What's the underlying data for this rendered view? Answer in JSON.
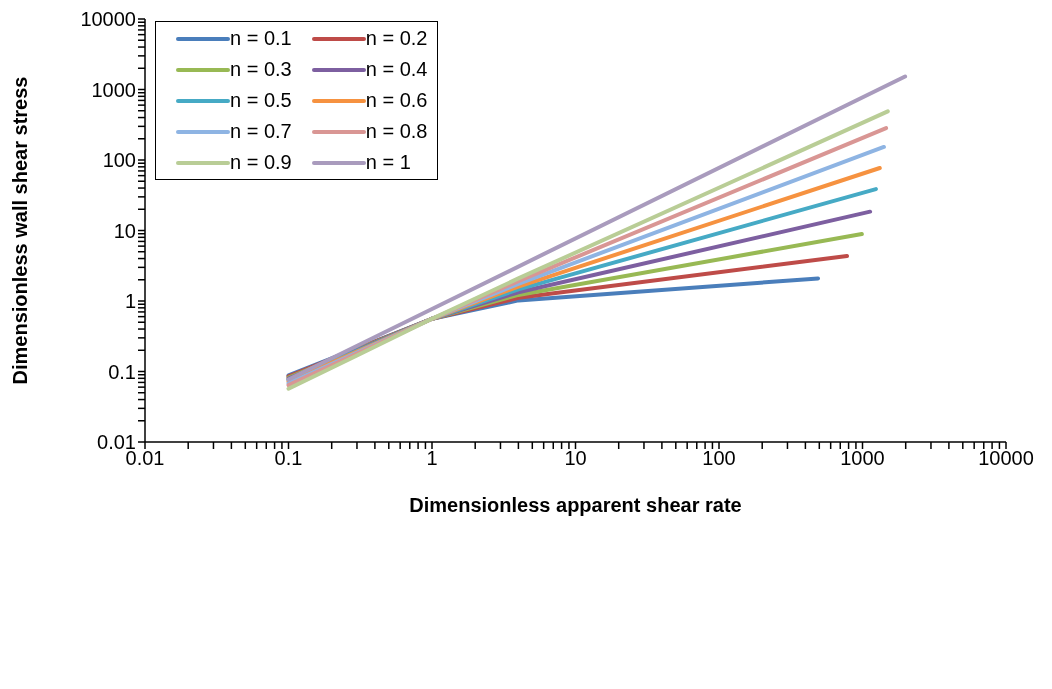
{
  "chart_data": {
    "type": "line",
    "xlabel": "Dimensionless apparent shear rate",
    "ylabel": "Dimensionless wall shear stress",
    "log": "xy",
    "grid": false,
    "legend": "top left",
    "line_style": "solid",
    "marker": "none",
    "xlim": [
      0.01,
      10000
    ],
    "ylim": [
      0.01,
      10000
    ],
    "xticks": [
      0.01,
      {
        "value": 0.02,
        "label": null
      },
      {
        "value": 0.03,
        "label": null
      },
      {
        "value": 0.04,
        "label": null
      },
      {
        "value": 0.05,
        "label": null
      },
      {
        "value": 0.06,
        "label": null
      },
      {
        "value": 0.07,
        "label": null
      },
      {
        "value": 0.08,
        "label": null
      },
      {
        "value": 0.09,
        "label": null
      },
      0.1,
      {
        "value": 0.2,
        "label": null
      },
      {
        "value": 0.3,
        "label": null
      },
      {
        "value": 0.4,
        "label": null
      },
      {
        "value": 0.5,
        "label": null
      },
      {
        "value": 0.6,
        "label": null
      },
      {
        "value": 0.7,
        "label": null
      },
      {
        "value": 0.8,
        "label": null
      },
      {
        "value": 0.9,
        "label": null
      },
      1,
      {
        "value": 2,
        "label": null
      },
      {
        "value": 3,
        "label": null
      },
      {
        "value": 4,
        "label": null
      },
      {
        "value": 5,
        "label": null
      },
      {
        "value": 6,
        "label": null
      },
      {
        "value": 7,
        "label": null
      },
      {
        "value": 8,
        "label": null
      },
      {
        "value": 9,
        "label": null
      },
      10,
      {
        "value": 20,
        "label": null
      },
      {
        "value": 30,
        "label": null
      },
      {
        "value": 40,
        "label": null
      },
      {
        "value": 50,
        "label": null
      },
      {
        "value": 60,
        "label": null
      },
      {
        "value": 70,
        "label": null
      },
      {
        "value": 80,
        "label": null
      },
      {
        "value": 90,
        "label": null
      },
      100,
      {
        "value": 200,
        "label": null
      },
      {
        "value": 300,
        "label": null
      },
      {
        "value": 400,
        "label": null
      },
      {
        "value": 500,
        "label": null
      },
      {
        "value": 600,
        "label": null
      },
      {
        "value": 700,
        "label": null
      },
      {
        "value": 800,
        "label": null
      },
      {
        "value": 900,
        "label": null
      },
      1000,
      {
        "value": 2000,
        "label": null
      },
      {
        "value": 3000,
        "label": null
      },
      {
        "value": 4000,
        "label": null
      },
      {
        "value": 5000,
        "label": null
      },
      {
        "value": 6000,
        "label": null
      },
      {
        "value": 7000,
        "label": null
      },
      {
        "value": 8000,
        "label": null
      },
      {
        "value": 9000,
        "label": null
      },
      10000
    ],
    "yticks": [
      0.01,
      {
        "value": 0.02,
        "label": null
      },
      {
        "value": 0.03,
        "label": null
      },
      {
        "value": 0.04,
        "label": null
      },
      {
        "value": 0.05,
        "label": null
      },
      {
        "value": 0.06,
        "label": null
      },
      {
        "value": 0.07,
        "label": null
      },
      {
        "value": 0.08,
        "label": null
      },
      {
        "value": 0.09,
        "label": null
      },
      0.1,
      {
        "value": 0.2,
        "label": null
      },
      {
        "value": 0.3,
        "label": null
      },
      {
        "value": 0.4,
        "label": null
      },
      {
        "value": 0.5,
        "label": null
      },
      {
        "value": 0.6,
        "label": null
      },
      {
        "value": 0.7,
        "label": null
      },
      {
        "value": 0.8,
        "label": null
      },
      {
        "value": 0.9,
        "label": null
      },
      1,
      {
        "value": 2,
        "label": null
      },
      {
        "value": 3,
        "label": null
      },
      {
        "value": 4,
        "label": null
      },
      {
        "value": 5,
        "label": null
      },
      {
        "value": 6,
        "label": null
      },
      {
        "value": 7,
        "label": null
      },
      {
        "value": 8,
        "label": null
      },
      {
        "value": 9,
        "label": null
      },
      10,
      {
        "value": 20,
        "label": null
      },
      {
        "value": 30,
        "label": null
      },
      {
        "value": 40,
        "label": null
      },
      {
        "value": 50,
        "label": null
      },
      {
        "value": 60,
        "label": null
      },
      {
        "value": 70,
        "label": null
      },
      {
        "value": 80,
        "label": null
      },
      {
        "value": 90,
        "label": null
      },
      100,
      {
        "value": 200,
        "label": null
      },
      {
        "value": 300,
        "label": null
      },
      {
        "value": 400,
        "label": null
      },
      {
        "value": 500,
        "label": null
      },
      {
        "value": 600,
        "label": null
      },
      {
        "value": 700,
        "label": null
      },
      {
        "value": 800,
        "label": null
      },
      {
        "value": 900,
        "label": null
      },
      1000,
      {
        "value": 2000,
        "label": null
      },
      {
        "value": 3000,
        "label": null
      },
      {
        "value": 4000,
        "label": null
      },
      {
        "value": 5000,
        "label": null
      },
      {
        "value": 6000,
        "label": null
      },
      {
        "value": 7000,
        "label": null
      },
      {
        "value": 8000,
        "label": null
      },
      {
        "value": 9000,
        "label": null
      },
      10000
    ],
    "series": [
      {
        "name": "n = 0.1",
        "color": "#4a7ebb",
        "x": [
          0.1,
          0.3,
          1,
          4,
          490
        ],
        "values": [
          0.088,
          0.213,
          0.56,
          1.02,
          2.09
        ]
      },
      {
        "name": "n = 0.2",
        "color": "#be4b48",
        "x": [
          0.1,
          0.3,
          1,
          4,
          780
        ],
        "values": [
          0.085,
          0.209,
          0.56,
          1.11,
          4.35
        ]
      },
      {
        "name": "n = 0.3",
        "color": "#98b954",
        "x": [
          0.1,
          0.3,
          1,
          4,
          990
        ],
        "values": [
          0.082,
          0.205,
          0.56,
          1.22,
          8.9
        ]
      },
      {
        "name": "n = 0.4",
        "color": "#7d5fa0",
        "x": [
          0.1,
          0.3,
          1,
          4,
          1130
        ],
        "values": [
          0.079,
          0.201,
          0.56,
          1.33,
          18.5
        ]
      },
      {
        "name": "n = 0.5",
        "color": "#46aac5",
        "x": [
          0.1,
          0.3,
          1,
          4,
          1240
        ],
        "values": [
          0.076,
          0.197,
          0.56,
          1.46,
          38.7
        ]
      },
      {
        "name": "n = 0.6",
        "color": "#f69240",
        "x": [
          0.1,
          0.3,
          1,
          4,
          1320
        ],
        "values": [
          0.072,
          0.192,
          0.56,
          1.6,
          77
        ]
      },
      {
        "name": "n = 0.7",
        "color": "#8eb4e3",
        "x": [
          0.1,
          0.3,
          1,
          4,
          1410
        ],
        "values": [
          0.068,
          0.186,
          0.56,
          1.75,
          153
        ]
      },
      {
        "name": "n = 0.8",
        "color": "#d99694",
        "x": [
          0.1,
          0.3,
          1,
          4,
          1460
        ],
        "values": [
          0.064,
          0.18,
          0.56,
          1.91,
          284
        ]
      },
      {
        "name": "n = 0.9",
        "color": "#b9cd96",
        "x": [
          0.1,
          0.3,
          1,
          4,
          1500
        ],
        "values": [
          0.057,
          0.169,
          0.56,
          2.09,
          490
        ]
      },
      {
        "name": "n = 1",
        "color": "#a99bbd",
        "x": [
          0.1,
          1,
          1980
        ],
        "values": [
          0.077,
          0.77,
          1530
        ]
      }
    ]
  }
}
